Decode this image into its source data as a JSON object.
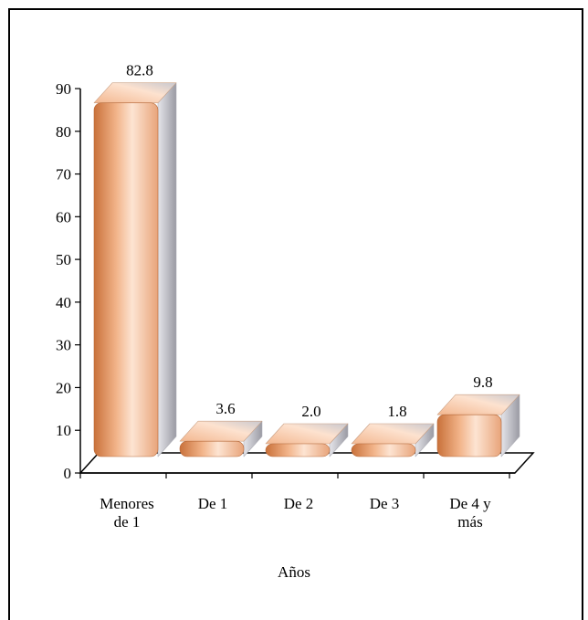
{
  "chart_data": {
    "type": "bar",
    "categories": [
      [
        "Menores",
        "de 1"
      ],
      [
        "De 1"
      ],
      [
        "De 2"
      ],
      [
        "De 3"
      ],
      [
        "De 4 y",
        "más"
      ]
    ],
    "values": [
      82.8,
      3.6,
      2.0,
      1.8,
      9.8
    ],
    "value_labels": [
      "82.8",
      "3.6",
      "2.0",
      "1.8",
      "9.8"
    ],
    "xlabel": "Años",
    "ylabel": "",
    "ylim": [
      0,
      90
    ],
    "yticks": [
      0,
      10,
      20,
      30,
      40,
      50,
      60,
      70,
      80,
      90
    ],
    "grid": false,
    "legend": "none",
    "style": "3d",
    "colors": {
      "bar_dark": "#c9713a",
      "bar_mid": "#f2b48a",
      "bar_light": "#fde4d2",
      "bar_top": "#f7c9a8",
      "floor": "#ffffff",
      "axis": "#000000"
    }
  }
}
